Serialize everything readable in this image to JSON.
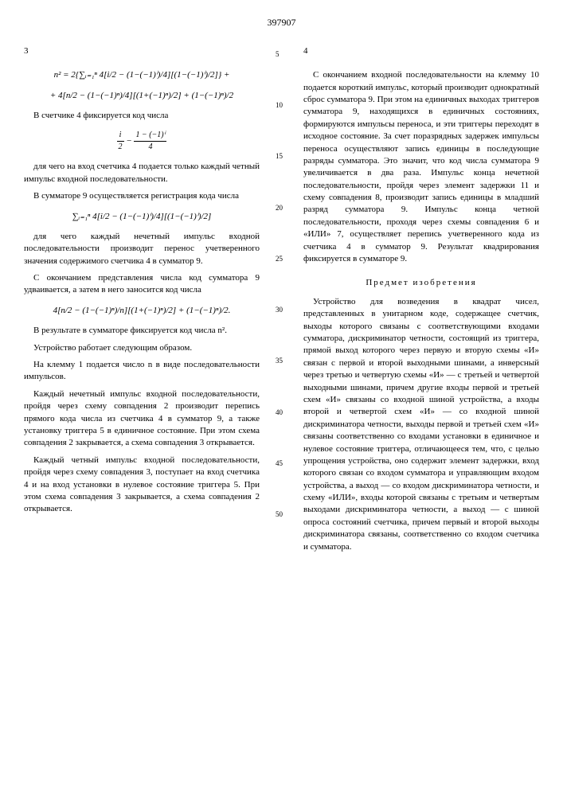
{
  "document_number": "397907",
  "left_page_num": "3",
  "right_page_num": "4",
  "line_numbers": [
    "5",
    "10",
    "15",
    "20",
    "25",
    "30",
    "35",
    "40",
    "45",
    "50"
  ],
  "formula1": "n² = 2{∑ᵢ₌₁ⁿ 4[i/2 − (1−(−1)ⁱ)/4][(1−(−1)ⁱ)/2]} +",
  "formula1b": "+ 4[n/2 − (1−(−1)ⁿ)/4][(1+(−1)ⁿ)/2] + (1−(−1)ⁿ)/2",
  "left_p1": "В счетчике 4 фиксируется код числа",
  "formula2_num": "i",
  "formula2_den": "2",
  "formula2b_num": "1 − (−1)ⁱ",
  "formula2b_den": "4",
  "left_p2": "для чего на вход счетчика 4 подается только каждый четный импульс входной последовательности.",
  "left_p3": "В сумматоре 9 осуществляется регистрация кода числа",
  "formula3": "∑ᵢ₌₁ⁿ 4[i/2 − (1−(−1)ⁱ)/4][(1−(−1)ⁱ)/2]",
  "left_p4": "для чего каждый нечетный импульс входной последовательности производит перенос учетверенного значения содержимого счетчика 4 в сумматор 9.",
  "left_p5": "С окончанием представления числа код сумматора 9 удваивается, а затем в него заносится код числа",
  "formula4": "4[n/2 − (1−(−1)ⁿ)/n][(1+(−1)ⁿ)/2] + (1−(−1)ⁿ)/2.",
  "left_p6": "В результате в сумматоре фиксируется код числа n².",
  "left_p7": "Устройство работает следующим образом.",
  "left_p8": "На клемму 1 подается число n в виде последовательности импульсов.",
  "left_p9": "Каждый нечетный импульс входной последовательности, пройдя через схему совпадения 2 производит перепись прямого кода числа из счетчика 4 в сумматор 9, а также установку триггера 5 в единичное состояние. При этом схема совпадения 2 закрывается, а схема совпадения 3 открывается.",
  "left_p10": "Каждый четный импульс входной последовательности, пройдя через схему совпадения 3, поступает на вход счетчика 4 и на вход установки в нулевое состояние триггера 5. При этом схема совпадения 3 закрывается, а схема совпадения 2 открывается.",
  "right_p1": "С окончанием входной последовательности на клемму 10 подается короткий импульс, который производит однократный сброс сумматора 9. При этом на единичных выходах триггеров сумматора 9, находящихся в единичных состояниях, формируются импульсы переноса, и эти триггеры переходят в исходное состояние. За счет поразрядных задержек импульсы переноса осуществляют запись единицы в последующие разряды сумматора. Это значит, что код числа сумматора 9 увеличивается в два раза. Импульс конца нечетной последовательности, пройдя через элемент задержки 11 и схему совпадения 8, производит запись единицы в младший разряд сумматора 9. Импульс конца четной последовательности, проходя через схемы совпадения 6 и «ИЛИ» 7, осуществляет перепись учетверенного кода из счетчика 4 в сумматор 9. Результат квадрирования фиксируется в сумматоре 9.",
  "subject_title": "Предмет изобретения",
  "right_p2": "Устройство для возведения в квадрат чисел, представленных в унитарном коде, содержащее счетчик, выходы которого связаны с соответствующими входами сумматора, дискриминатор четности, состоящий из триггера, прямой выход которого через первую и вторую схемы «И» связан с первой и второй выходными шинами, а инверсный через третью и четвертую схемы «И» — с третьей и четвертой выходными шинами, причем другие входы первой и третьей схем «И» связаны со входной шиной устройства, а входы второй и четвертой схем «И» — со входной шиной дискриминатора четности, выходы первой и третьей схем «И» связаны соответственно со входами установки в единичное и нулевое состояние триггера, отличающееся тем, что, с целью упрощения устройства, оно содержит элемент задержки, вход которого связан со входом сумматора и управляющим входом устройства, а выход — со входом дискриминатора четности, и схему «ИЛИ», входы которой связаны с третьим и четвертым выходами дискриминатора четности, а выход — с шиной опроса состояний счетчика, причем первый и второй выходы дискриминатора связаны, соответственно со входом счетчика и сумматора."
}
